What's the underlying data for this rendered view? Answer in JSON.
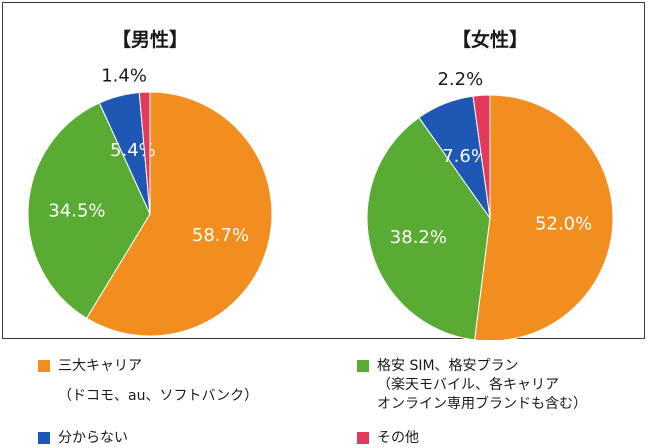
{
  "chart_data": [
    {
      "type": "pie",
      "title": "【男性】",
      "slices": [
        {
          "label": "三大キャリア（ドコモ、au、ソフトバンク）",
          "value": 58.7,
          "display": "58.7%"
        },
        {
          "label": "格安 SIM、格安プラン（楽天モバイル、各キャリアオンライン専用ブランドも含む）",
          "value": 34.5,
          "display": "34.5%"
        },
        {
          "label": "分からない",
          "value": 5.4,
          "display": "5.4%"
        },
        {
          "label": "その他",
          "value": 1.4,
          "display": "1.4%"
        }
      ]
    },
    {
      "type": "pie",
      "title": "【女性】",
      "slices": [
        {
          "label": "三大キャリア（ドコモ、au、ソフトバンク）",
          "value": 52.0,
          "display": "52.0%"
        },
        {
          "label": "格安 SIM、格安プラン（楽天モバイル、各キャリアオンライン専用ブランドも含む）",
          "value": 38.2,
          "display": "38.2%"
        },
        {
          "label": "分からない",
          "value": 7.6,
          "display": "7.6%"
        },
        {
          "label": "その他",
          "value": 2.2,
          "display": "2.2%"
        }
      ]
    }
  ],
  "colors": [
    "#f28e1f",
    "#5aab34",
    "#1f57b5",
    "#e23a5b"
  ],
  "legend": [
    {
      "lines": [
        "三大キャリア",
        "（ドコモ、au、ソフトバンク）"
      ],
      "color": "#f28e1f"
    },
    {
      "lines": [
        "格安 SIM、格安プラン",
        "（楽天モバイル、各キャリア",
        "オンライン専用ブランドも含む）"
      ],
      "color": "#5aab34"
    },
    {
      "lines": [
        "分からない"
      ],
      "color": "#1f57b5"
    },
    {
      "lines": [
        "その他"
      ],
      "color": "#e23a5b"
    }
  ]
}
